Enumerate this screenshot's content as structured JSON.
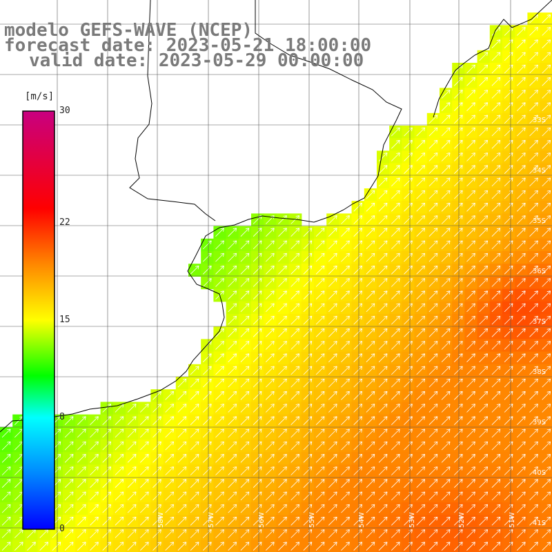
{
  "title": {
    "line1": "modelo GEFS-WAVE (NCEP)",
    "line2": "forecast date: 2023-05-21 18:00:00",
    "line3": "valid date: 2023-05-29 00:00:00"
  },
  "colorbar": {
    "unit": "[m/s]",
    "ticks": [
      {
        "label": "30",
        "value": 30
      },
      {
        "label": "22",
        "value": 22
      },
      {
        "label": "15",
        "value": 15
      },
      {
        "label": "8",
        "value": 8
      },
      {
        "label": "0",
        "value": 0
      }
    ],
    "range": [
      0,
      30
    ],
    "stops": [
      {
        "value": 0,
        "color": "#0000ff"
      },
      {
        "value": 4,
        "color": "#0088ff"
      },
      {
        "value": 8,
        "color": "#00ffff"
      },
      {
        "value": 11,
        "color": "#00ff00"
      },
      {
        "value": 15,
        "color": "#ffff00"
      },
      {
        "value": 19,
        "color": "#ff8800"
      },
      {
        "value": 23,
        "color": "#ff0000"
      },
      {
        "value": 30,
        "color": "#c80080"
      }
    ]
  },
  "axes": {
    "lon_labels": [
      "58W",
      "57W",
      "56W",
      "55W",
      "54W",
      "53W",
      "52W",
      "51W"
    ],
    "lat_labels": [
      "33S",
      "34S",
      "35S",
      "36S",
      "37S",
      "38S",
      "39S",
      "40S",
      "41S"
    ],
    "grid": true
  },
  "field": {
    "variable": "wind speed",
    "arrow_color": "#ffffff",
    "coast_color": "#000000",
    "land_color": "#ffffff"
  }
}
